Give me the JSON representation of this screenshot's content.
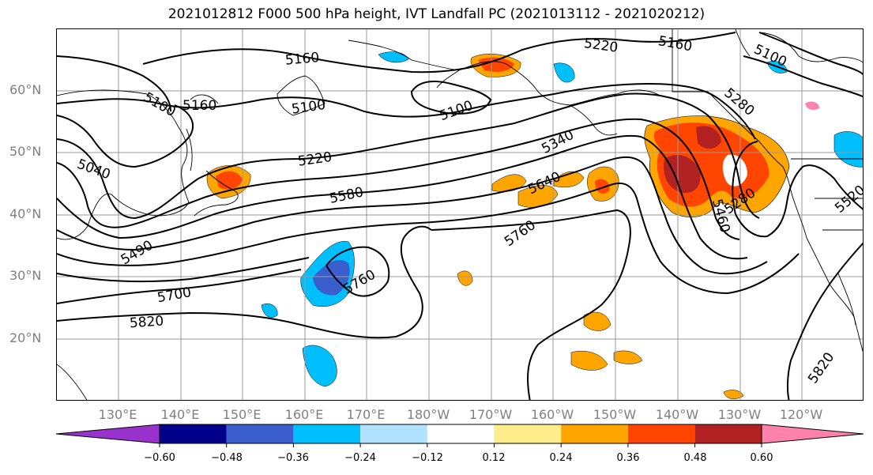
{
  "title": "2021012812 F000 500 hPa height, IVT Landfall PC (2021013112 - 2021020212)",
  "map": {
    "lat_labels": [
      "60°N",
      "50°N",
      "40°N",
      "30°N",
      "20°N"
    ],
    "lon_labels": [
      "130°E",
      "140°E",
      "150°E",
      "160°E",
      "170°E",
      "180°W",
      "170°W",
      "160°W",
      "150°W",
      "140°W",
      "130°W",
      "120°W"
    ],
    "contour_labels": [
      "5160",
      "5220",
      "5160",
      "5100",
      "5100",
      "5160",
      "5100",
      "5100",
      "5040",
      "5220",
      "5340",
      "5580",
      "5640",
      "5760",
      "5760",
      "5700",
      "5820",
      "5460",
      "5280",
      "5820",
      "5280",
      "5520",
      "5490"
    ]
  },
  "colorbar": {
    "colors": [
      "#9932cc",
      "#00008b",
      "#3a5fcd",
      "#00bfff",
      "#b0e2ff",
      "#ffffff",
      "#ffec8b",
      "#ffa500",
      "#ff4500",
      "#b22222",
      "#ff82ab"
    ],
    "ticks": [
      "−0.60",
      "−0.48",
      "−0.36",
      "−0.24",
      "−0.12",
      "0.12",
      "0.24",
      "0.36",
      "0.48",
      "0.60"
    ]
  }
}
